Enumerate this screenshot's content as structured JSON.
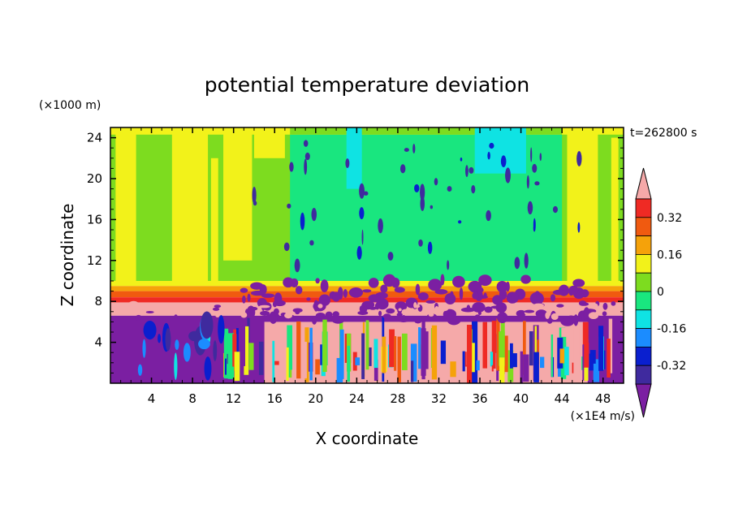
{
  "chart_data": {
    "type": "heatmap",
    "title": "potential temperature deviation",
    "xlabel": "X coordinate",
    "ylabel": "Z coordinate",
    "x_unit": "(×1E4 m/s)",
    "y_unit": "(×1000 m)",
    "time_label": "t=262800 s",
    "xlim": [
      0,
      50
    ],
    "ylim": [
      0,
      25
    ],
    "x_ticks": [
      4,
      8,
      12,
      16,
      20,
      24,
      28,
      32,
      36,
      40,
      44,
      48
    ],
    "y_ticks": [
      4,
      8,
      12,
      16,
      20,
      24
    ],
    "colorbar": {
      "labels": [
        "0.32",
        "0.16",
        "0",
        "-0.16",
        "-0.32"
      ],
      "label_values": [
        0.32,
        0.16,
        0,
        -0.16,
        -0.32
      ],
      "levels": [
        -0.4,
        -0.32,
        -0.24,
        -0.16,
        -0.08,
        0,
        0.08,
        0.16,
        0.24,
        0.32,
        0.4
      ],
      "colors": [
        "#7b1fa2",
        "#3f2a9e",
        "#0a1fcf",
        "#1b8cff",
        "#0fe3e3",
        "#19e67f",
        "#7ddc1f",
        "#f2f21a",
        "#f5a20a",
        "#f05a10",
        "#ef2a24",
        "#f5a9a9"
      ],
      "extend": "both"
    },
    "layers": [
      {
        "z_range": [
          0,
          7.5
        ],
        "value": "mixed: -0.4 to >0.4 (convective cells)"
      },
      {
        "z_range": [
          7.5,
          8.5
        ],
        "value": 0.45
      },
      {
        "z_range": [
          8.5,
          9.5
        ],
        "value": 0.36
      },
      {
        "z_range": [
          9.5,
          10
        ],
        "value": 0.2
      },
      {
        "z_range": [
          10,
          25
        ],
        "value": "0.04 (x<17, x>44) / -0.04 (17<x<44)"
      }
    ]
  }
}
